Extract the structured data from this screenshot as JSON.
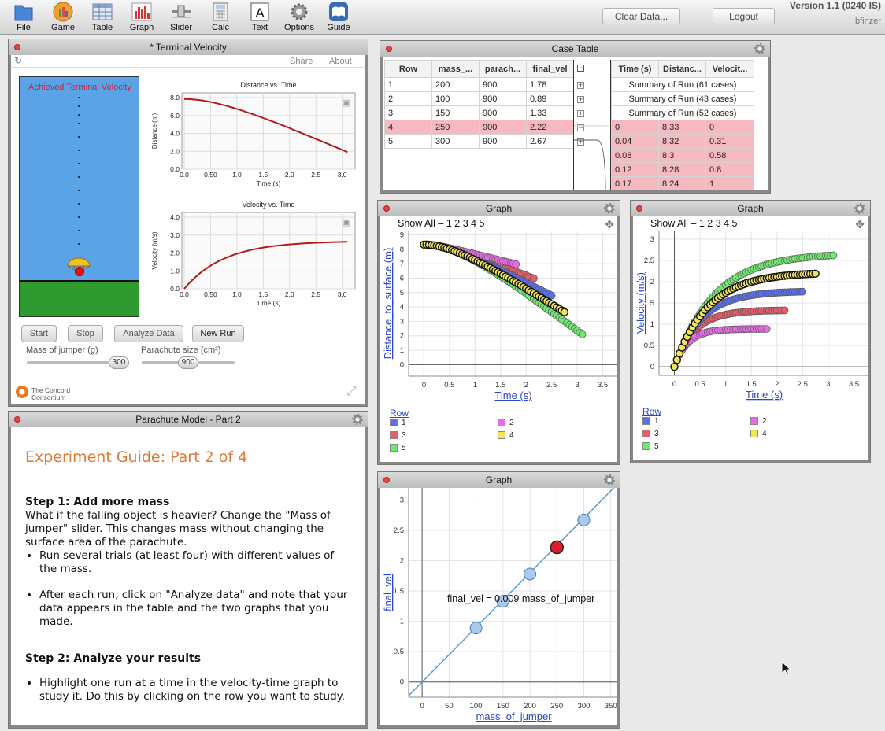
{
  "toolbar": {
    "items": [
      {
        "label": "File",
        "icon": "file-icon"
      },
      {
        "label": "Game",
        "icon": "game-icon"
      },
      {
        "label": "Table",
        "icon": "table-icon"
      },
      {
        "label": "Graph",
        "icon": "graph-icon"
      },
      {
        "label": "Slider",
        "icon": "slider-icon"
      },
      {
        "label": "Calc",
        "icon": "calc-icon"
      },
      {
        "label": "Text",
        "icon": "text-icon"
      },
      {
        "label": "Options",
        "icon": "options-gear-icon"
      },
      {
        "label": "Guide",
        "icon": "guide-book-icon"
      }
    ],
    "clear_data": "Clear Data...",
    "logout": "Logout",
    "version": "Version 1.1 (0240 IS)",
    "user": "bfinzer"
  },
  "sim": {
    "title": "* Terminal Velocity",
    "share": "Share",
    "about": "About",
    "achieved": "Achieved Terminal Velocity",
    "dist_title": "Distance vs. Time",
    "dist_ylabel": "Distance (m)",
    "dist_xlabel": "Time (s)",
    "dist_yticks": [
      "8.0",
      "6.0",
      "4.0",
      "2.0",
      "0.0"
    ],
    "dist_curve": [
      [
        0,
        8.33
      ],
      [
        0.5,
        7.6
      ],
      [
        1,
        6.7
      ],
      [
        1.5,
        5.6
      ],
      [
        2,
        4.45
      ],
      [
        2.5,
        3.1
      ],
      [
        3.1,
        1.3
      ]
    ],
    "vel_title": "Velocity vs. Time",
    "vel_ylabel": "Velocity (m/s)",
    "vel_xlabel": "Time (s)",
    "vel_yticks": [
      "4.0",
      "3.0",
      "2.0",
      "1.0",
      "0.0"
    ],
    "xticks": [
      "0.0",
      "0.50",
      "1.0",
      "1.5",
      "2.0",
      "2.5",
      "3.0"
    ],
    "start": "Start",
    "stop": "Stop",
    "analyze": "Analyze Data",
    "new_run": "New Run",
    "mass_label": "Mass of jumper (g)",
    "mass_value": "300",
    "chute_label": "Parachute size (cm²)",
    "chute_value": "900",
    "logo": "The Concord Consortium",
    "colors": {
      "sky": "#5aa3e6",
      "ground": "#2f9a2f",
      "curve": "#b31b1b"
    }
  },
  "case_table": {
    "title": "Case Table",
    "left_headers": [
      "Row",
      "mass_...",
      "parach...",
      "final_vel"
    ],
    "rows": [
      [
        "1",
        "200",
        "900",
        "1.78"
      ],
      [
        "2",
        "100",
        "900",
        "0.89"
      ],
      [
        "3",
        "150",
        "900",
        "1.33"
      ],
      [
        "4",
        "250",
        "900",
        "2.22"
      ],
      [
        "5",
        "300",
        "900",
        "2.67"
      ]
    ],
    "right_headers": [
      "Time (s)",
      "Distanc...",
      "Velocit..."
    ],
    "summaries": [
      "Summary of Run (61 cases)",
      "Summary of Run (43 cases)",
      "Summary of Run (52 cases)"
    ],
    "detail_rows": [
      [
        "0",
        "8.33",
        "0"
      ],
      [
        "0.04",
        "8.32",
        "0.31"
      ],
      [
        "0.08",
        "8.3",
        "0.58"
      ],
      [
        "0.12",
        "8.28",
        "0.8"
      ],
      [
        "0.17",
        "8.24",
        "1"
      ]
    ]
  },
  "guide": {
    "window_title": "Parachute Model - Part 2",
    "heading": "Experiment Guide: Part 2 of 4",
    "step1_title": "Step 1: Add more mass",
    "step1_text": "What if the falling object is heavier? Change the \"Mass of jumper\" slider. This changes mass without changing the surface area of the parachute.",
    "step1_bullets": [
      "Run several trials (at least four) with different values of the mass.",
      "After each run, click on \"Analyze data\" and note that your data appears in the table and the two graphs that you made."
    ],
    "step2_title": "Step 2: Analyze your results",
    "step2_bullets": [
      "Highlight one run at a time in the velocity-time graph to study it. Do this by clicking on the row you want to study."
    ]
  },
  "graph1": {
    "window_title": "Graph",
    "show_all": "Show All –  1  2  3  4  5",
    "ylabel": "Distance_to_surface (m)",
    "xlabel": "Time (s)",
    "yticks": [
      "0",
      "1",
      "2",
      "3",
      "4",
      "5",
      "6",
      "7",
      "8",
      "9"
    ],
    "xticks": [
      "0",
      "0.5",
      "1",
      "1.5",
      "2",
      "2.5",
      "3",
      "3.5"
    ],
    "legend_title": "Row",
    "legend": [
      {
        "name": "1",
        "color": "#5a6ff0"
      },
      {
        "name": "2",
        "color": "#e86ae8"
      },
      {
        "name": "3",
        "color": "#e65c6a"
      },
      {
        "name": "4",
        "color": "#f2e45a"
      },
      {
        "name": "5",
        "color": "#6fe86f"
      }
    ]
  },
  "graph2": {
    "window_title": "Graph",
    "show_all": "Show All –  1  2  3  4  5",
    "ylabel": "Velocity (m/s)",
    "xlabel": "Time (s)",
    "yticks": [
      "0",
      "0.5",
      "1",
      "1.5",
      "2",
      "2.5",
      "3"
    ],
    "xticks": [
      "0",
      "0.5",
      "1",
      "1.5",
      "2",
      "2.5",
      "3",
      "3.5"
    ],
    "legend_title": "Row"
  },
  "graph3": {
    "window_title": "Graph",
    "ylabel": "final_vel",
    "xlabel": "mass_of_jumper",
    "equation": "final_vel = 0.009 mass_of_jumper",
    "yticks": [
      "0",
      "0.5",
      "1",
      "1.5",
      "2",
      "2.5",
      "3"
    ],
    "xticks": [
      "0",
      "50",
      "100",
      "150",
      "200",
      "250",
      "300",
      "350"
    ]
  },
  "chart_data": [
    {
      "type": "scatter",
      "title": "",
      "xlabel": "Time (s)",
      "ylabel": "Distance_to_surface (m)",
      "xlim": [
        -0.3,
        3.8
      ],
      "ylim": [
        -0.8,
        9.3
      ],
      "series": [
        {
          "name": "1",
          "color": "#5a6ff0",
          "t_end": 2.5,
          "vt": 1.78
        },
        {
          "name": "2",
          "color": "#e86ae8",
          "t_end": 1.8,
          "vt": 0.89
        },
        {
          "name": "3",
          "color": "#e65c6a",
          "t_end": 2.15,
          "vt": 1.33
        },
        {
          "name": "4",
          "color": "#f2e45a",
          "t_end": 2.75,
          "vt": 2.22
        },
        {
          "name": "5",
          "color": "#6fe86f",
          "t_end": 3.1,
          "vt": 2.67
        }
      ],
      "start_distance": 8.33
    },
    {
      "type": "scatter",
      "title": "",
      "xlabel": "Time (s)",
      "ylabel": "Velocity (m/s)",
      "xlim": [
        -0.3,
        3.8
      ],
      "ylim": [
        -0.2,
        3.2
      ]
    },
    {
      "type": "scatter",
      "title": "",
      "xlabel": "mass_of_jumper",
      "ylabel": "final_vel",
      "xlim": [
        -25,
        365
      ],
      "ylim": [
        -0.25,
        3.2
      ],
      "x": [
        100,
        150,
        200,
        250,
        300
      ],
      "y": [
        0.89,
        1.33,
        1.78,
        2.22,
        2.67
      ],
      "highlight_index": 3,
      "line_slope": 0.009
    }
  ]
}
